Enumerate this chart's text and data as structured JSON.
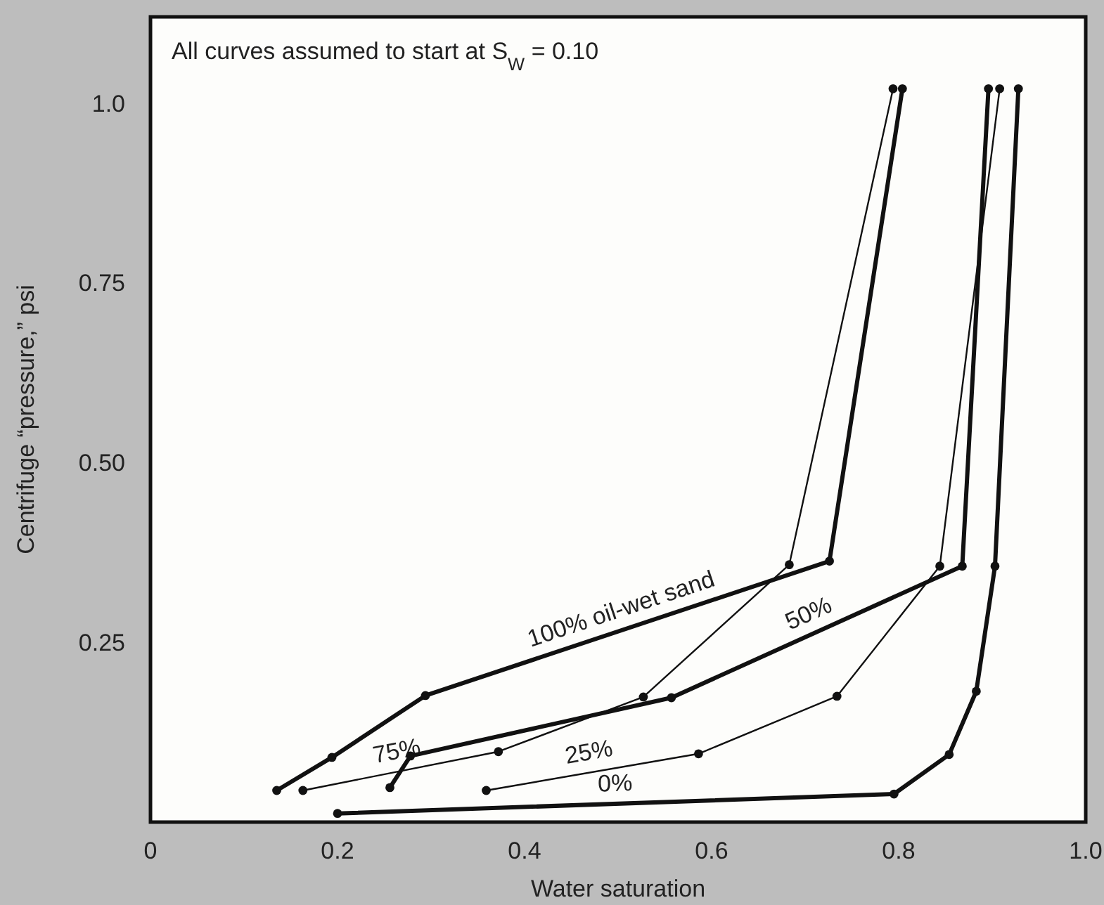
{
  "chart_data": {
    "type": "line",
    "xlabel": "Water saturation",
    "ylabel": "Centrifuge “pressure,” psi",
    "annotations": [
      "All curves assumed to start at S$_{W}$ = 0.10"
    ],
    "xlim": [
      0,
      1
    ],
    "xticks": [
      0,
      0.2,
      0.4,
      0.6,
      0.8,
      {
        "value": 1,
        "label": "1.0"
      }
    ],
    "ylim": [
      0,
      1.12
    ],
    "yticks": [
      {
        "value": 0.25,
        "label": "0.25"
      },
      {
        "value": 0.5,
        "label": "0.50"
      },
      0.75,
      {
        "value": 1,
        "label": "1.0"
      }
    ],
    "grid": false,
    "legend": false,
    "marker": "circle",
    "line_style": "solid",
    "series": [
      {
        "name": "100% oil-wet sand",
        "color": "#111111",
        "x": [
          0.135,
          0.194,
          0.294,
          0.726,
          0.804
        ],
        "values": [
          0.044,
          0.09,
          0.176,
          0.363,
          1.02
        ]
      },
      {
        "name": "75%",
        "color": "#111111",
        "x": [
          0.163,
          0.372,
          0.527,
          0.683,
          0.794
        ],
        "values": [
          0.044,
          0.098,
          0.174,
          0.358,
          1.02
        ]
      },
      {
        "name": "50%",
        "color": "#111111",
        "x": [
          0.256,
          0.278,
          0.557,
          0.868,
          0.896
        ],
        "values": [
          0.048,
          0.092,
          0.173,
          0.356,
          1.02
        ]
      },
      {
        "name": "25%",
        "color": "#111111",
        "x": [
          0.359,
          0.586,
          0.734,
          0.844,
          0.908
        ],
        "values": [
          0.044,
          0.095,
          0.175,
          0.356,
          1.02
        ]
      },
      {
        "name": "0%",
        "color": "#111111",
        "x": [
          0.2,
          0.795,
          0.854,
          0.883,
          0.903,
          0.928
        ],
        "values": [
          0.012,
          0.039,
          0.094,
          0.182,
          0.356,
          1.02
        ]
      }
    ]
  }
}
